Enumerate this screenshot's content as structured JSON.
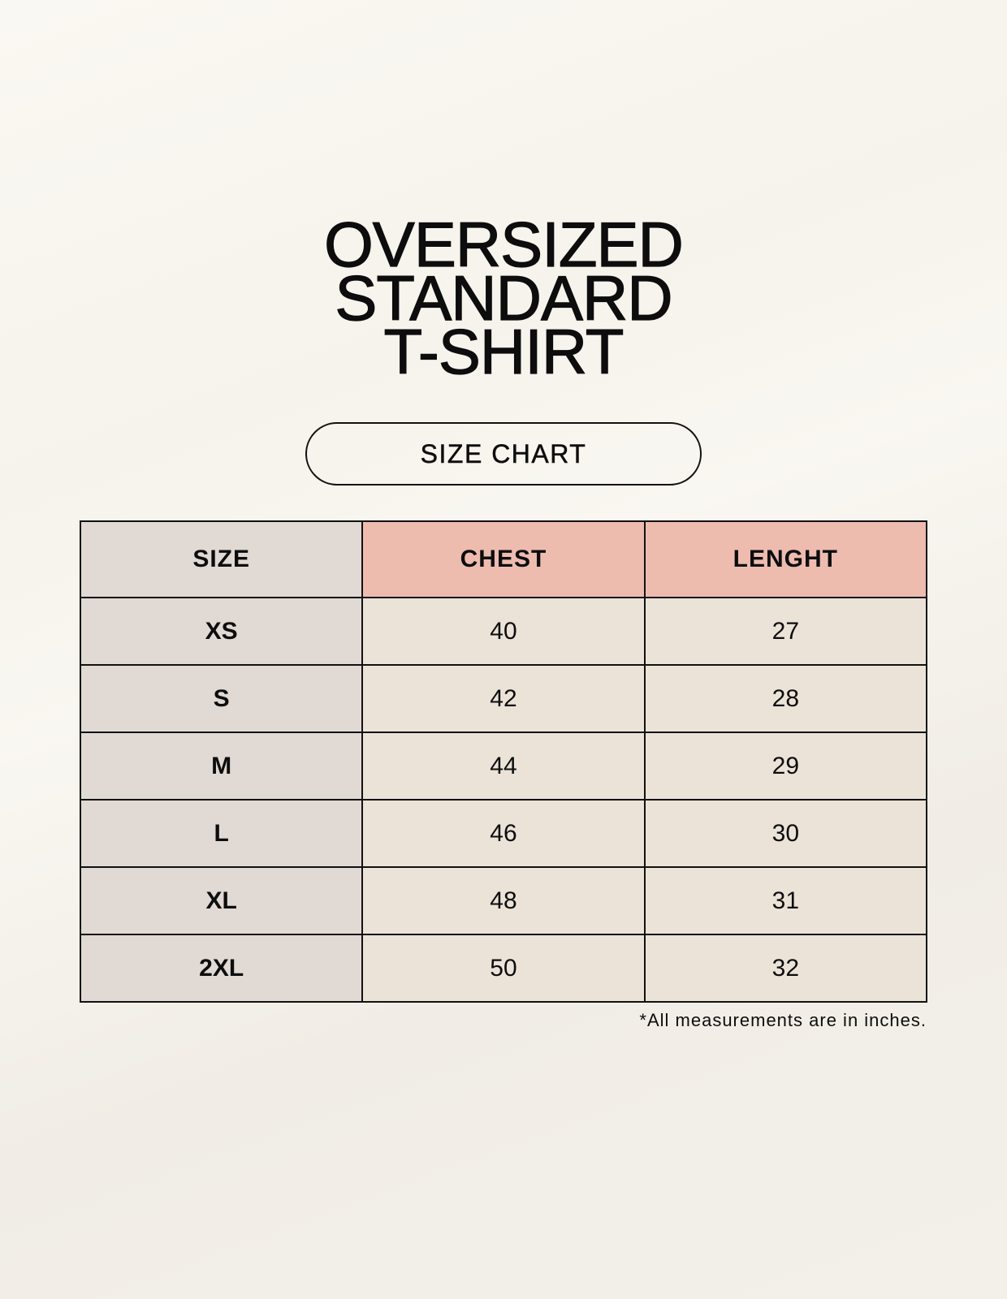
{
  "title": {
    "lines": [
      "OVERSIZED",
      "STANDARD",
      "T-SHIRT"
    ]
  },
  "badge": "SIZE CHART",
  "colors": {
    "background": "#f8f6f0",
    "size_column": "#e0d9d4",
    "header_highlight": "#eebcaf",
    "cell": "#ebe3d8",
    "border": "#111111"
  },
  "table": {
    "headers": [
      "SIZE",
      "CHEST",
      "LENGHT"
    ],
    "rows": [
      [
        "XS",
        "40",
        "27"
      ],
      [
        "S",
        "42",
        "28"
      ],
      [
        "M",
        "44",
        "29"
      ],
      [
        "L",
        "46",
        "30"
      ],
      [
        "XL",
        "48",
        "31"
      ],
      [
        "2XL",
        "50",
        "32"
      ]
    ]
  },
  "footnote": "*All measurements are in inches."
}
